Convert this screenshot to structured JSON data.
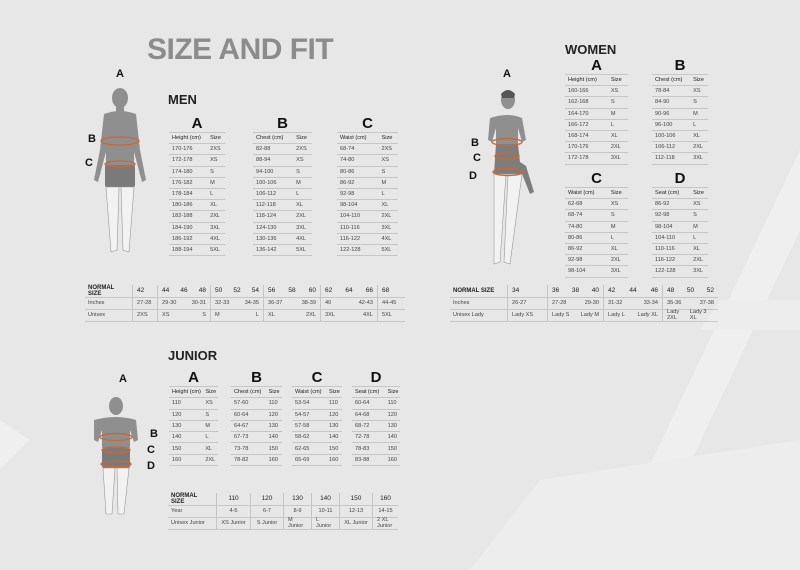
{
  "title": "SIZE AND FIT",
  "colors": {
    "background": "#e7e7e7",
    "title": "#8c8c8c",
    "figure": "#8f8f8f",
    "measure_line": "#c8693a"
  },
  "men": {
    "heading": "MEN",
    "figure_labels": [
      "A",
      "B",
      "C"
    ],
    "tables": [
      {
        "letter": "A",
        "header": [
          "Height (cm)",
          "Size"
        ],
        "rows": [
          [
            "170-176",
            "2XS"
          ],
          [
            "172-178",
            "XS"
          ],
          [
            "174-180",
            "S"
          ],
          [
            "176-182",
            "M"
          ],
          [
            "178-184",
            "L"
          ],
          [
            "180-186",
            "XL"
          ],
          [
            "182-188",
            "2XL"
          ],
          [
            "184-190",
            "3XL"
          ],
          [
            "186-192",
            "4XL"
          ],
          [
            "188-194",
            "5XL"
          ]
        ]
      },
      {
        "letter": "B",
        "header": [
          "Chest (cm)",
          "Size"
        ],
        "rows": [
          [
            "82-88",
            "2XS"
          ],
          [
            "88-94",
            "XS"
          ],
          [
            "94-100",
            "S"
          ],
          [
            "100-106",
            "M"
          ],
          [
            "106-112",
            "L"
          ],
          [
            "112-118",
            "XL"
          ],
          [
            "118-124",
            "2XL"
          ],
          [
            "124-130",
            "3XL"
          ],
          [
            "130-136",
            "4XL"
          ],
          [
            "136-142",
            "5XL"
          ]
        ]
      },
      {
        "letter": "C",
        "header": [
          "Waist (cm)",
          "Size"
        ],
        "rows": [
          [
            "68-74",
            "2XS"
          ],
          [
            "74-80",
            "XS"
          ],
          [
            "80-86",
            "S"
          ],
          [
            "86-92",
            "M"
          ],
          [
            "92-98",
            "L"
          ],
          [
            "98-104",
            "XL"
          ],
          [
            "104-110",
            "2XL"
          ],
          [
            "110-116",
            "3XL"
          ],
          [
            "116-122",
            "4XL"
          ],
          [
            "122-128",
            "5XL"
          ]
        ]
      }
    ],
    "normal_size": {
      "rows": [
        {
          "label": "NORMAL SIZE",
          "groups": [
            [
              "42"
            ],
            [
              "44",
              "46",
              "48"
            ],
            [
              "50",
              "52",
              "54"
            ],
            [
              "56",
              "58",
              "60"
            ],
            [
              "62",
              "64",
              "66"
            ],
            [
              "68"
            ]
          ]
        },
        {
          "label": "Inches",
          "groups": [
            [
              "27-28"
            ],
            [
              "29-30",
              "30-31"
            ],
            [
              "32-33",
              "34-35"
            ],
            [
              "36-37",
              "38-39"
            ],
            [
              "40",
              "42-43"
            ],
            [
              "44-45"
            ]
          ]
        },
        {
          "label": "Unisex",
          "groups": [
            [
              "2XS"
            ],
            [
              "XS",
              "S"
            ],
            [
              "M",
              "L"
            ],
            [
              "XL",
              "2XL"
            ],
            [
              "3XL",
              "4XL"
            ],
            [
              "5XL"
            ]
          ]
        }
      ]
    }
  },
  "women": {
    "heading": "WOMEN",
    "figure_labels": [
      "A",
      "B",
      "C",
      "D"
    ],
    "tables": [
      {
        "letter": "A",
        "header": [
          "Height (cm)",
          "Size"
        ],
        "rows": [
          [
            "160-166",
            "XS"
          ],
          [
            "162-168",
            "S"
          ],
          [
            "164-170",
            "M"
          ],
          [
            "166-172",
            "L"
          ],
          [
            "168-174",
            "XL"
          ],
          [
            "170-176",
            "2XL"
          ],
          [
            "172-178",
            "3XL"
          ]
        ]
      },
      {
        "letter": "B",
        "header": [
          "Chest (cm)",
          "Size"
        ],
        "rows": [
          [
            "78-84",
            "XS"
          ],
          [
            "84-90",
            "S"
          ],
          [
            "90-96",
            "M"
          ],
          [
            "96-100",
            "L"
          ],
          [
            "100-106",
            "XL"
          ],
          [
            "106-112",
            "2XL"
          ],
          [
            "112-118",
            "3XL"
          ]
        ]
      },
      {
        "letter": "C",
        "header": [
          "Waist (cm)",
          "Size"
        ],
        "rows": [
          [
            "62-68",
            "XS"
          ],
          [
            "68-74",
            "S"
          ],
          [
            "74-80",
            "M"
          ],
          [
            "80-86",
            "L"
          ],
          [
            "86-92",
            "XL"
          ],
          [
            "92-98",
            "2XL"
          ],
          [
            "98-104",
            "3XL"
          ]
        ]
      },
      {
        "letter": "D",
        "header": [
          "Seat (cm)",
          "Size"
        ],
        "rows": [
          [
            "86-92",
            "XS"
          ],
          [
            "92-98",
            "S"
          ],
          [
            "98-104",
            "M"
          ],
          [
            "104-110",
            "L"
          ],
          [
            "110-116",
            "XL"
          ],
          [
            "116-122",
            "2XL"
          ],
          [
            "122-128",
            "3XL"
          ]
        ]
      }
    ],
    "normal_size": {
      "rows": [
        {
          "label": "NORMAL SIZE",
          "groups": [
            [
              "34"
            ],
            [
              "36",
              "38",
              "40"
            ],
            [
              "42",
              "44",
              "46"
            ],
            [
              "48",
              "50",
              "52"
            ]
          ]
        },
        {
          "label": "Inches",
          "groups": [
            [
              "26-27"
            ],
            [
              "27-28",
              "29-30"
            ],
            [
              "31-32",
              "33-34"
            ],
            [
              "35-36",
              "37-38"
            ]
          ]
        },
        {
          "label": "Unisex Lady",
          "groups": [
            [
              "Lady XS"
            ],
            [
              "Lady S",
              "Lady M"
            ],
            [
              "Lady L",
              "Lady XL"
            ],
            [
              "Lady 2XL",
              "Lady 3 XL"
            ]
          ]
        }
      ]
    }
  },
  "junior": {
    "heading": "JUNIOR",
    "figure_labels": [
      "A",
      "B",
      "C",
      "D"
    ],
    "tables": [
      {
        "letter": "A",
        "header": [
          "Height (cm)",
          "Size"
        ],
        "rows": [
          [
            "110",
            "XS"
          ],
          [
            "120",
            "S"
          ],
          [
            "130",
            "M"
          ],
          [
            "140",
            "L"
          ],
          [
            "150",
            "XL"
          ],
          [
            "160",
            "2XL"
          ]
        ]
      },
      {
        "letter": "B",
        "header": [
          "Chest (cm)",
          "Size"
        ],
        "rows": [
          [
            "57-60",
            "110"
          ],
          [
            "60-64",
            "120"
          ],
          [
            "64-67",
            "130"
          ],
          [
            "67-73",
            "140"
          ],
          [
            "73-78",
            "150"
          ],
          [
            "78-82",
            "160"
          ]
        ]
      },
      {
        "letter": "C",
        "header": [
          "Waist (cm)",
          "Size"
        ],
        "rows": [
          [
            "53-54",
            "110"
          ],
          [
            "54-57",
            "120"
          ],
          [
            "57-58",
            "130"
          ],
          [
            "58-62",
            "140"
          ],
          [
            "62-65",
            "150"
          ],
          [
            "65-69",
            "160"
          ]
        ]
      },
      {
        "letter": "D",
        "header": [
          "Seat (cm)",
          "Size"
        ],
        "rows": [
          [
            "60-64",
            "110"
          ],
          [
            "64-68",
            "120"
          ],
          [
            "68-72",
            "130"
          ],
          [
            "72-78",
            "140"
          ],
          [
            "78-83",
            "150"
          ],
          [
            "83-88",
            "160"
          ]
        ]
      }
    ],
    "normal_size": {
      "rows": [
        {
          "label": "NORMAL SIZE",
          "groups": [
            [
              "110"
            ],
            [
              "120"
            ],
            [
              "130"
            ],
            [
              "140"
            ],
            [
              "150"
            ],
            [
              "160"
            ]
          ]
        },
        {
          "label": "Year",
          "groups": [
            [
              "4-5"
            ],
            [
              "6-7"
            ],
            [
              "8-9"
            ],
            [
              "10-11"
            ],
            [
              "12-13"
            ],
            [
              "14-15"
            ]
          ]
        },
        {
          "label": "Unisex Junior",
          "groups": [
            [
              "XS Junior"
            ],
            [
              "S Junior"
            ],
            [
              "M Junior"
            ],
            [
              "L Junior"
            ],
            [
              "XL Junior"
            ],
            [
              "2 XL Junior"
            ]
          ]
        }
      ]
    }
  }
}
